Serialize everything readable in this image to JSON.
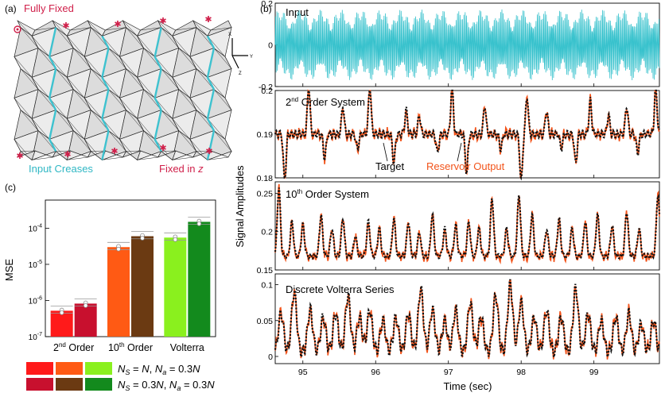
{
  "panel_a": {
    "label": "(a)",
    "fully_fixed_label": "Fully Fixed",
    "input_creases_label": "Input Creases",
    "fixed_in_z_label": "Fixed in ",
    "fixed_in_z_var": "z",
    "axis_x": "X",
    "axis_y": "Y",
    "axis_z": "Z",
    "colors": {
      "crease": "#3ec2cf",
      "marker": "#d0204a",
      "panel": "#e6e6e6",
      "line": "#222222"
    }
  },
  "panel_b": {
    "label": "(b)",
    "ylabel": "Signal Amplitudes",
    "xlabel": "Time (sec)",
    "target_label": "Target",
    "reservoir_label": "Reservoir Output",
    "colors": {
      "input": "#35c1cc",
      "reservoir": "#f2541b",
      "target": "#111111"
    }
  },
  "panel_c": {
    "label": "(c)",
    "ylabel": "MSE",
    "legend_row1": "N_S = N, N_a = 0.3N",
    "legend_row2": "N_S = 0.3N, N_a = 0.3N"
  },
  "chart_data": [
    {
      "type": "line",
      "title": "Input",
      "ylim": [
        -0.2,
        0.2
      ],
      "yticks": [
        "0.2",
        "0",
        "-0.2"
      ],
      "xlim": [
        94.62,
        99.9
      ],
      "description_series": [
        {
          "name": "Input",
          "amplitude": 0.17
        }
      ]
    },
    {
      "type": "line",
      "title": "2nd Order System",
      "ylim": [
        0.18,
        0.2
      ],
      "yticks": [
        "0.2",
        "0.19",
        "0.18"
      ],
      "xlim": [
        94.62,
        99.9
      ],
      "series": [
        {
          "name": "Target"
        },
        {
          "name": "Reservoir Output"
        }
      ],
      "events": [
        [
          94.75,
          -1
        ],
        [
          95.08,
          1
        ],
        [
          95.3,
          -0.5
        ],
        [
          95.55,
          0.6
        ],
        [
          95.75,
          -0.3
        ],
        [
          95.92,
          1
        ],
        [
          96.25,
          -0.6
        ],
        [
          96.42,
          0.5
        ],
        [
          96.6,
          0.4
        ],
        [
          96.85,
          -0.4
        ],
        [
          97.05,
          1
        ],
        [
          97.25,
          -0.8
        ],
        [
          97.5,
          0.6
        ],
        [
          97.72,
          -0.3
        ],
        [
          98.0,
          -1
        ],
        [
          98.08,
          0.8
        ],
        [
          98.35,
          0.5
        ],
        [
          98.55,
          -0.3
        ],
        [
          98.75,
          -0.6
        ],
        [
          98.95,
          0.7
        ],
        [
          99.2,
          0.4
        ],
        [
          99.45,
          0.6
        ],
        [
          99.6,
          -0.4
        ],
        [
          99.85,
          1
        ]
      ]
    },
    {
      "type": "line",
      "title": "10th Order System",
      "ylim": [
        0.15,
        0.265
      ],
      "yticks": [
        "0.25",
        "0.2",
        "0.15"
      ],
      "xlim": [
        94.62,
        99.9
      ],
      "series": [
        {
          "name": "Target"
        },
        {
          "name": "Reservoir Output"
        }
      ],
      "events": [
        [
          94.67,
          1
        ],
        [
          94.85,
          0.5
        ],
        [
          95.0,
          0.45
        ],
        [
          95.25,
          0.6
        ],
        [
          95.4,
          0.4
        ],
        [
          95.55,
          0.55
        ],
        [
          95.72,
          0.3
        ],
        [
          95.9,
          0.5
        ],
        [
          96.05,
          0.4
        ],
        [
          96.25,
          0.55
        ],
        [
          96.45,
          0.5
        ],
        [
          96.6,
          0.35
        ],
        [
          96.78,
          0.6
        ],
        [
          96.95,
          0.4
        ],
        [
          97.1,
          0.45
        ],
        [
          97.28,
          0.5
        ],
        [
          97.42,
          0.4
        ],
        [
          97.6,
          0.85
        ],
        [
          97.8,
          0.4
        ],
        [
          97.97,
          0.9
        ],
        [
          98.15,
          0.6
        ],
        [
          98.35,
          0.4
        ],
        [
          98.52,
          0.55
        ],
        [
          98.7,
          0.4
        ],
        [
          98.88,
          0.5
        ],
        [
          99.05,
          0.6
        ],
        [
          99.25,
          0.45
        ],
        [
          99.45,
          0.65
        ],
        [
          99.62,
          0.4
        ],
        [
          99.88,
          0.9
        ]
      ]
    },
    {
      "type": "line",
      "title": "Discrete Volterra Series",
      "ylim": [
        -0.01,
        0.115
      ],
      "yticks": [
        "0.1",
        "0.05",
        "0"
      ],
      "xlim": [
        94.62,
        99.9
      ],
      "xticks": [
        "95",
        "96",
        "97",
        "98",
        "99"
      ],
      "series": [
        {
          "name": "Target"
        },
        {
          "name": "Reservoir Output"
        }
      ],
      "events": [
        [
          94.7,
          0.55
        ],
        [
          94.88,
          0.85
        ],
        [
          95.1,
          0.6
        ],
        [
          95.28,
          0.5
        ],
        [
          95.45,
          0.55
        ],
        [
          95.62,
          0.8
        ],
        [
          95.78,
          0.5
        ],
        [
          95.92,
          0.6
        ],
        [
          96.1,
          0.45
        ],
        [
          96.28,
          0.5
        ],
        [
          96.45,
          0.55
        ],
        [
          96.62,
          0.9
        ],
        [
          96.78,
          0.6
        ],
        [
          96.95,
          0.45
        ],
        [
          97.1,
          0.6
        ],
        [
          97.3,
          0.7
        ],
        [
          97.45,
          0.5
        ],
        [
          97.65,
          0.8
        ],
        [
          97.85,
          0.95
        ],
        [
          98.0,
          0.7
        ],
        [
          98.18,
          0.5
        ],
        [
          98.35,
          0.6
        ],
        [
          98.55,
          0.5
        ],
        [
          98.75,
          0.9
        ],
        [
          98.92,
          0.55
        ],
        [
          99.1,
          0.45
        ],
        [
          99.3,
          0.5
        ],
        [
          99.48,
          0.55
        ],
        [
          99.65,
          0.4
        ],
        [
          99.82,
          0.45
        ]
      ]
    },
    {
      "type": "bar",
      "title": "",
      "yscale": "log",
      "ylim": [
        1e-07,
        0.0006
      ],
      "yticks": [
        "10-4",
        "10-5",
        "10-6",
        "10-7"
      ],
      "categories": [
        "2nd Order",
        "10th Order",
        "Volterra"
      ],
      "series": [
        {
          "name": "N_S = N, N_a = 0.3N",
          "values": [
            5.2e-07,
            3e-05,
            5.5e-05
          ],
          "colors": [
            "#ff1a1a",
            "#ff5a14",
            "#8af01e"
          ]
        },
        {
          "name": "N_S = 0.3N, N_a = 0.3N",
          "values": [
            8.2e-07,
            6e-05,
            0.00015
          ],
          "colors": [
            "#c8102e",
            "#6b3a12",
            "#138a1d"
          ]
        }
      ]
    }
  ]
}
